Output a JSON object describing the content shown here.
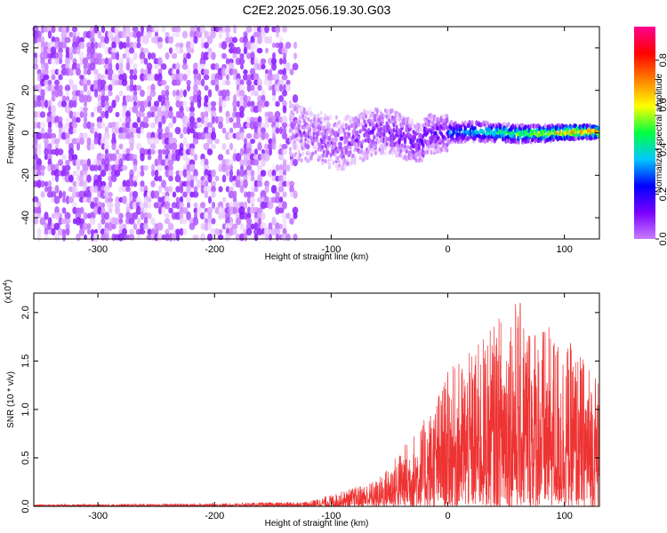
{
  "title": "C2E2.2025.056.19.30.G03",
  "chart_data": [
    {
      "type": "heatmap",
      "title": "",
      "xlabel": "Height of straight line (km)",
      "ylabel": "Frequency (Hz)",
      "xlim": [
        -355,
        130
      ],
      "ylim": [
        -50,
        50
      ],
      "xticks": [
        -300,
        -200,
        -100,
        0,
        100
      ],
      "yticks": [
        -40,
        -20,
        0,
        20,
        40
      ],
      "colorbar": {
        "label": "Normalized spectral amplitude",
        "range": [
          0,
          0.95
        ],
        "ticks": [
          "0.0",
          "0.2",
          "0.4",
          "0.6",
          "0.8"
        ],
        "tick_values": [
          0.0,
          0.2,
          0.4,
          0.6,
          0.8
        ],
        "colors": [
          "#ffffff",
          "#c87cff",
          "#7a00ff",
          "#0000ff",
          "#00c8ff",
          "#00ff40",
          "#ffff00",
          "#ff8000",
          "#ff0000",
          "#ff0090"
        ]
      },
      "description_regions": [
        {
          "x_range": [
            -355,
            -135
          ],
          "freq_range": [
            -50,
            50
          ],
          "amplitude": 0.08
        },
        {
          "x_range": [
            -135,
            0
          ],
          "freq_range": [
            -20,
            15
          ],
          "amplitude": 0.2
        },
        {
          "x_range": [
            0,
            130
          ],
          "freq_range": [
            -5,
            5
          ],
          "amplitude": 0.6
        }
      ]
    },
    {
      "type": "line",
      "title": "",
      "xlabel": "Height of straight line (km)",
      "ylabel": "SNR (10 * v/v)",
      "y_multiplier": "(x10",
      "y_multiplier_exp": "4",
      "xlim": [
        -355,
        130
      ],
      "ylim": [
        0,
        2.2
      ],
      "xticks": [
        -300,
        -200,
        -100,
        0,
        100
      ],
      "yticks": [
        "0.0",
        "0.5",
        "1.0",
        "1.5",
        "2.0"
      ],
      "ytick_values": [
        0.0,
        0.5,
        1.0,
        1.5,
        2.0
      ],
      "line_color": "#ee3333",
      "envelope": [
        {
          "x": -355,
          "y": 0.02
        },
        {
          "x": -200,
          "y": 0.03
        },
        {
          "x": -120,
          "y": 0.05
        },
        {
          "x": -100,
          "y": 0.12
        },
        {
          "x": -80,
          "y": 0.2
        },
        {
          "x": -60,
          "y": 0.28
        },
        {
          "x": -40,
          "y": 0.6
        },
        {
          "x": -20,
          "y": 0.9
        },
        {
          "x": 0,
          "y": 1.4
        },
        {
          "x": 20,
          "y": 1.6
        },
        {
          "x": 40,
          "y": 1.9
        },
        {
          "x": 55,
          "y": 2.2
        },
        {
          "x": 80,
          "y": 1.9
        },
        {
          "x": 100,
          "y": 1.75
        },
        {
          "x": 130,
          "y": 1.4
        }
      ]
    }
  ]
}
